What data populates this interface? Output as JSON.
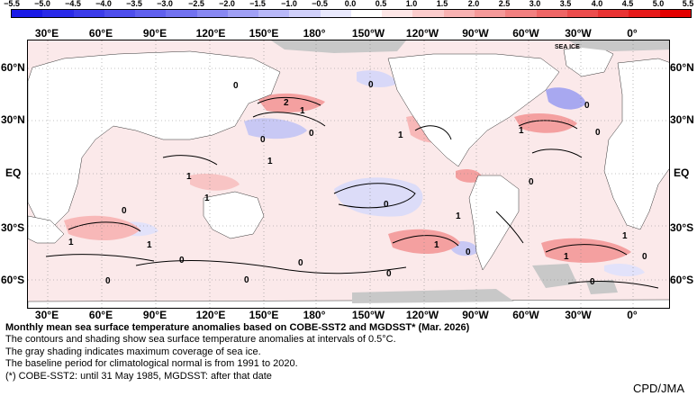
{
  "colorbar": {
    "labels": [
      "−5.5",
      "−5.0",
      "−4.5",
      "−4.0",
      "−3.5",
      "−3.0",
      "−2.5",
      "−2.0",
      "−1.5",
      "−1.0",
      "−0.5",
      "0.0",
      "0.5",
      "1.0",
      "1.5",
      "2.0",
      "2.5",
      "3.0",
      "3.5",
      "4.0",
      "4.5",
      "5.0",
      "5.5"
    ],
    "colors": [
      "#1a1ae6",
      "#2a2ae8",
      "#3c3cea",
      "#4e4eec",
      "#6060ee",
      "#7272f0",
      "#8888f2",
      "#a0a0f5",
      "#b8b8f8",
      "#d0d0fa",
      "#e8e8fc",
      "#ffffff",
      "#fde6e6",
      "#fbcccc",
      "#f8b2b2",
      "#f59999",
      "#f28080",
      "#ef6666",
      "#ec4d4d",
      "#e93333",
      "#e61a1a",
      "#e30000"
    ]
  },
  "lon_labels": [
    "30°E",
    "60°E",
    "90°E",
    "120°E",
    "150°E",
    "180°",
    "150°W",
    "120°W",
    "90°W",
    "60°W",
    "30°W",
    "0°"
  ],
  "lat_labels_left": [
    "60°N",
    "30°N",
    "EQ",
    "30°S",
    "60°S"
  ],
  "lat_labels_right": [
    "60°N",
    "30°N",
    "EQ",
    "30°S",
    "60°S"
  ],
  "contour_labels": [
    "0",
    "0",
    "2",
    "1",
    "0",
    "0",
    "1",
    "1",
    "0",
    "0",
    "1",
    "1",
    "0",
    "1",
    "0",
    "0",
    "0",
    "1",
    "0",
    "1",
    "1",
    "1",
    "0",
    "0",
    "0",
    "0",
    "1",
    "1",
    "0",
    "0"
  ],
  "sea_ice_label": "SEA ICE",
  "caption": {
    "title": "Monthly mean sea surface temperature anomalies based on COBE-SST2 and MGDSST* (Mar. 2026)",
    "lines": [
      "The contours and shading show sea surface temperature anomalies at intervals of 0.5°C.",
      "The gray shading indicates maximum coverage of sea ice.",
      "The baseline period for climatological normal is from 1991 to 2020.",
      "(*) COBE-SST2: until 31 May 1985, MGDSST: after that date"
    ]
  },
  "credit": "CPD/JMA"
}
